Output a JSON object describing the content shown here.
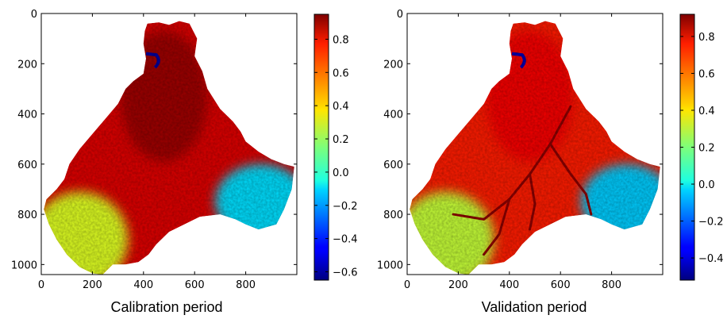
{
  "chart_data": [
    {
      "type": "heatmap",
      "caption": "Calibration period",
      "x_ticks": [
        0,
        200,
        400,
        600,
        800
      ],
      "y_ticks": [
        0,
        200,
        400,
        600,
        800,
        1000
      ],
      "xlim": [
        0,
        1000
      ],
      "ylim": [
        1040,
        0
      ],
      "colorbar": {
        "range": [
          -0.65,
          0.95
        ],
        "ticks": [
          0.8,
          0.6,
          0.4,
          0.2,
          0.0,
          -0.2,
          -0.4,
          -0.6
        ],
        "tick_labels": [
          "0.8",
          "0.6",
          "0.4",
          "0.2",
          "0.0",
          "−0.2",
          "−0.4",
          "−0.6"
        ],
        "colormap": "jet"
      },
      "regions": [
        {
          "area": "north-center",
          "value": 0.9
        },
        {
          "area": "central",
          "value": 0.8
        },
        {
          "area": "south-west",
          "value": 0.3
        },
        {
          "area": "south-east",
          "value": -0.1
        },
        {
          "area": "small-lake-north",
          "value": -0.6
        }
      ]
    },
    {
      "type": "heatmap",
      "caption": "Validation period",
      "x_ticks": [
        0,
        200,
        400,
        600,
        800
      ],
      "y_ticks": [
        0,
        200,
        400,
        600,
        800,
        1000
      ],
      "xlim": [
        0,
        1000
      ],
      "ylim": [
        1040,
        0
      ],
      "colorbar": {
        "range": [
          -0.52,
          0.92
        ],
        "ticks": [
          0.8,
          0.6,
          0.4,
          0.2,
          0.0,
          -0.2,
          -0.4
        ],
        "tick_labels": [
          "0.8",
          "0.6",
          "0.4",
          "0.2",
          "0.0",
          "−0.2",
          "−0.4"
        ],
        "colormap": "jet"
      },
      "regions": [
        {
          "area": "north-center",
          "value": 0.75
        },
        {
          "area": "central",
          "value": 0.7
        },
        {
          "area": "river-network",
          "value": 0.9
        },
        {
          "area": "south-west",
          "value": 0.3
        },
        {
          "area": "south-east",
          "value": -0.05
        },
        {
          "area": "small-lake-north",
          "value": -0.45
        }
      ]
    }
  ]
}
